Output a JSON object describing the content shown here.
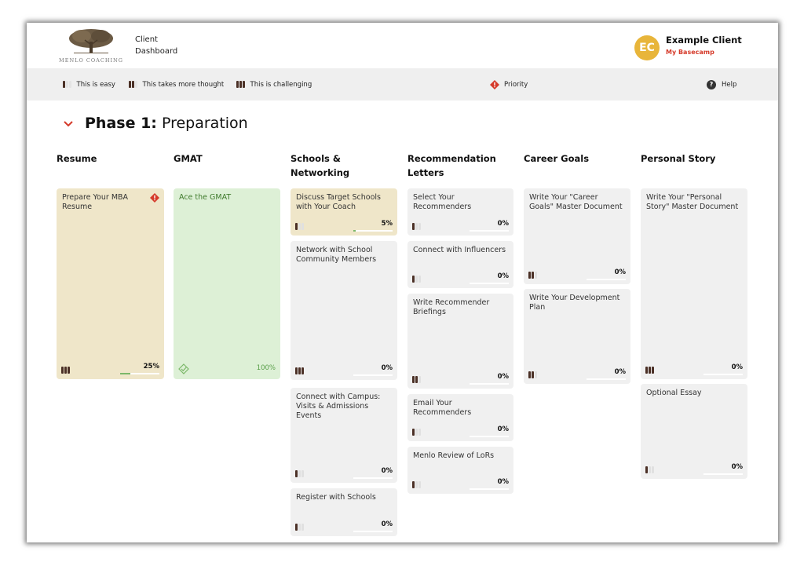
{
  "header": {
    "logo_text": "MENLO COACHING",
    "app_title_line1": "Client",
    "app_title_line2": "Dashboard",
    "avatar_initials": "EC",
    "user_name": "Example Client",
    "user_link": "My Basecamp"
  },
  "legend": {
    "easy": "This is easy",
    "thought": "This takes more thought",
    "challenging": "This is challenging",
    "priority": "Priority",
    "help": "Help"
  },
  "phase": {
    "label": "Phase 1:",
    "name": "Preparation"
  },
  "columns": [
    {
      "title": "Resume"
    },
    {
      "title": "GMAT"
    },
    {
      "title": "Schools & Networking"
    },
    {
      "title": "Recommendation Letters"
    },
    {
      "title": "Career Goals"
    },
    {
      "title": "Personal Story"
    }
  ],
  "cards": {
    "resume": {
      "title": "Prepare Your MBA Resume",
      "pct": "25%",
      "progress": 0.25,
      "difficulty": 3,
      "priority": true
    },
    "gmat": {
      "title": "Ace the GMAT",
      "pct": "100%",
      "progress": 1.0
    },
    "schools_1": {
      "title": "Discuss Target Schools with Your Coach",
      "pct": "5%",
      "progress": 0.05,
      "difficulty": 1
    },
    "schools_2": {
      "title": "Network with School Community Members",
      "pct": "0%",
      "progress": 0,
      "difficulty": 3
    },
    "schools_3": {
      "title": "Connect with Campus: Visits & Admissions Events",
      "pct": "0%",
      "progress": 0,
      "difficulty": 1
    },
    "schools_4": {
      "title": "Register with Schools",
      "pct": "0%",
      "progress": 0,
      "difficulty": 1
    },
    "rec_1": {
      "title": "Select Your Recommenders",
      "pct": "0%",
      "progress": 0,
      "difficulty": 1
    },
    "rec_2": {
      "title": "Connect with Influencers",
      "pct": "0%",
      "progress": 0,
      "difficulty": 1
    },
    "rec_3": {
      "title": "Write Recommender Briefings",
      "pct": "0%",
      "progress": 0,
      "difficulty": 2
    },
    "rec_4": {
      "title": "Email Your Recommenders",
      "pct": "0%",
      "progress": 0,
      "difficulty": 1
    },
    "rec_5": {
      "title": "Menlo Review of LoRs",
      "pct": "0%",
      "progress": 0,
      "difficulty": 1
    },
    "career_1": {
      "title": "Write Your \"Career Goals\" Master Document",
      "pct": "0%",
      "progress": 0,
      "difficulty": 2
    },
    "career_2": {
      "title": "Write Your Development Plan",
      "pct": "0%",
      "progress": 0,
      "difficulty": 2
    },
    "story_1": {
      "title": "Write Your \"Personal Story\" Master Document",
      "pct": "0%",
      "progress": 0,
      "difficulty": 3
    },
    "story_2": {
      "title": "Optional Essay",
      "pct": "0%",
      "progress": 0,
      "difficulty": 1
    }
  },
  "colors": {
    "accent_red": "#d53a2a",
    "avatar_yellow": "#e8b53a",
    "beige_card": "#efe6c9",
    "green_card": "#ddf0d6",
    "difficulty_brown": "#4b3026"
  }
}
